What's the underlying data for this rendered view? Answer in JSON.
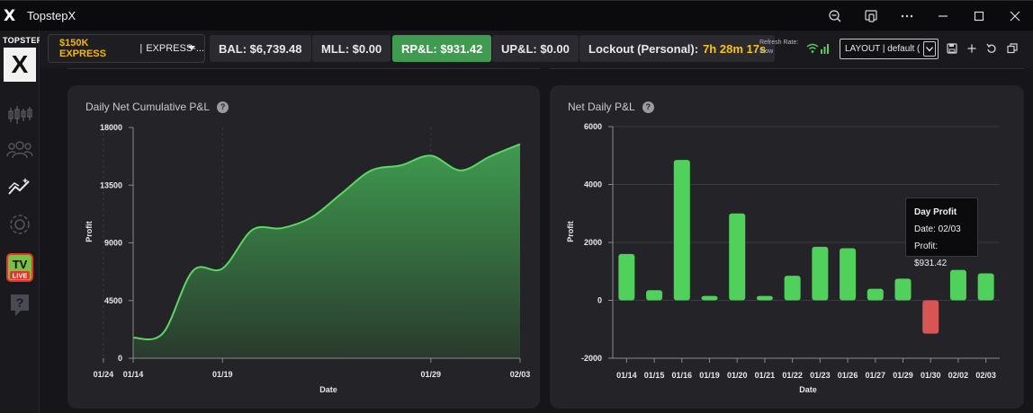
{
  "app": {
    "title": "TopstepX",
    "logo": "X"
  },
  "sidebar": {
    "brand_top": "TOPSTEP",
    "brand_letter": "X",
    "items": [
      {
        "name": "candlestick-icon"
      },
      {
        "name": "users-icon"
      },
      {
        "name": "analytics-icon"
      },
      {
        "name": "settings-icon"
      },
      {
        "name": "tv-live-icon",
        "label": "TV",
        "sub": "LIVE"
      },
      {
        "name": "help-icon",
        "label": "?"
      }
    ]
  },
  "toolbar": {
    "account_name": "$150K EXPRESS",
    "account_sep": "|",
    "account_id": "EXPRESS-...",
    "bal": "BAL: $6,739.48",
    "mll": "MLL: $0.00",
    "rpl": "RP&L: $931.42",
    "upl": "UP&L: $0.00",
    "lockout_label": "Lockout (Personal):",
    "lockout_value": "7h 28m 17s",
    "refresh_label": "Refresh Rate:",
    "refresh_value": "Slow",
    "layout_value": "LAYOUT | default (",
    "accent_green": "#3f9b4f"
  },
  "panels": {
    "left_title": "Daily Net Cumulative P&L",
    "right_title": "Net Daily P&L",
    "help": "?"
  },
  "tooltip": {
    "title": "Day Profit",
    "date": "Date: 02/03",
    "profit": "Profit: $931.42"
  },
  "chart_data": [
    {
      "type": "area",
      "title": "Daily Net Cumulative P&L",
      "xlabel": "Date",
      "ylabel": "Profit",
      "ylim": [
        0,
        18000
      ],
      "yticks": [
        0,
        4500,
        9000,
        13500,
        18000
      ],
      "xticks": [
        "01/14",
        "01/19",
        "01/24",
        "01/29",
        "02/03"
      ],
      "x": [
        "01/14",
        "01/15",
        "01/16",
        "01/19",
        "01/20",
        "01/21",
        "01/22",
        "01/23",
        "01/26",
        "01/27",
        "01/29",
        "01/30",
        "02/02",
        "02/03"
      ],
      "values": [
        1600,
        1950,
        6800,
        7000,
        10000,
        10150,
        11000,
        12850,
        14650,
        15050,
        15800,
        14650,
        15750,
        16700
      ],
      "color": "#5cd665",
      "grid": "vertical"
    },
    {
      "type": "bar",
      "title": "Net Daily P&L",
      "xlabel": "Date",
      "ylabel": "Profit",
      "ylim": [
        -2000,
        6000
      ],
      "yticks": [
        -2000,
        0,
        2000,
        4000,
        6000
      ],
      "categories": [
        "01/14",
        "01/15",
        "01/16",
        "01/19",
        "01/20",
        "01/21",
        "01/22",
        "01/23",
        "01/26",
        "01/27",
        "01/29",
        "01/30",
        "02/02",
        "02/03"
      ],
      "values": [
        1600,
        350,
        4850,
        150,
        3000,
        150,
        850,
        1850,
        1800,
        400,
        750,
        -1150,
        1050,
        931.42
      ],
      "positive_color": "#4fd15b",
      "negative_color": "#d95454",
      "grid": "horizontal"
    }
  ]
}
